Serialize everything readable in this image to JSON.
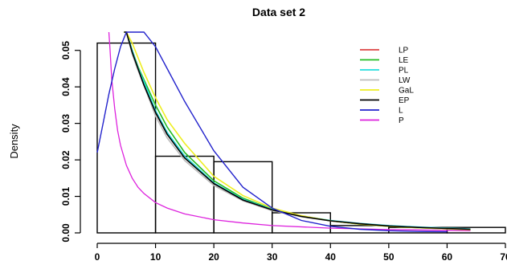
{
  "chart_data": {
    "type": "line",
    "title": "Data set 2",
    "xlabel": "",
    "ylabel": "Density",
    "xlim": [
      0,
      70
    ],
    "ylim": [
      0,
      0.055
    ],
    "x_ticks": [
      "0",
      "10",
      "20",
      "30",
      "40",
      "50",
      "60",
      "70"
    ],
    "y_ticks": [
      "0.00",
      "0.01",
      "0.02",
      "0.03",
      "0.04",
      "0.05"
    ],
    "grid": false,
    "legend_position": "top-right",
    "histogram": [
      {
        "x0": 0,
        "x1": 10,
        "density": 0.052
      },
      {
        "x0": 10,
        "x1": 20,
        "density": 0.021
      },
      {
        "x0": 20,
        "x1": 30,
        "density": 0.0195
      },
      {
        "x0": 30,
        "x1": 40,
        "density": 0.0055
      },
      {
        "x0": 40,
        "x1": 50,
        "density": 0.002
      },
      {
        "x0": 50,
        "x1": 60,
        "density": 0.0015
      },
      {
        "x0": 60,
        "x1": 70,
        "density": 0.0015
      }
    ],
    "x": [
      4.6,
      5,
      6,
      7,
      8,
      10,
      12,
      15,
      20,
      25,
      30,
      35,
      40,
      45,
      50,
      55,
      60,
      64
    ],
    "series": [
      {
        "name": "LP",
        "color": "#dd4444",
        "values": [
          0.0575,
          0.055,
          0.05,
          0.045,
          0.041,
          0.033,
          0.027,
          0.021,
          0.0135,
          0.0092,
          0.0064,
          0.0046,
          0.0033,
          0.0025,
          0.0019,
          0.0015,
          0.0012,
          0.001
        ]
      },
      {
        "name": "LE",
        "color": "#22bb22",
        "values": [
          0.0575,
          0.055,
          0.05,
          0.0455,
          0.042,
          0.035,
          0.029,
          0.022,
          0.0143,
          0.0095,
          0.0065,
          0.0046,
          0.0033,
          0.0024,
          0.0018,
          0.0014,
          0.0011,
          0.0009
        ]
      },
      {
        "name": "PL",
        "color": "#22dddd",
        "values": [
          0.0575,
          0.055,
          0.05,
          0.0452,
          0.0415,
          0.0335,
          0.0275,
          0.021,
          0.0137,
          0.0092,
          0.0064,
          0.0046,
          0.0034,
          0.0026,
          0.002,
          0.0016,
          0.0013,
          0.0011
        ]
      },
      {
        "name": "LW",
        "color": "#bbbbbb",
        "values": [
          0.0575,
          0.055,
          0.049,
          0.0445,
          0.0405,
          0.032,
          0.026,
          0.0198,
          0.013,
          0.0088,
          0.0061,
          0.0044,
          0.0033,
          0.0025,
          0.0019,
          0.0015,
          0.0012,
          0.001
        ]
      },
      {
        "name": "GaL",
        "color": "#eeee22",
        "values": [
          0.0575,
          0.056,
          0.052,
          0.048,
          0.044,
          0.037,
          0.031,
          0.0245,
          0.0155,
          0.0102,
          0.0068,
          0.0047,
          0.0033,
          0.0024,
          0.0018,
          0.0014,
          0.0011,
          0.0009
        ]
      },
      {
        "name": "EP",
        "color": "#000000",
        "values": [
          0.0575,
          0.055,
          0.0495,
          0.045,
          0.0405,
          0.033,
          0.027,
          0.0205,
          0.0135,
          0.009,
          0.0063,
          0.0045,
          0.0033,
          0.0025,
          0.0019,
          0.0015,
          0.0012,
          0.001
        ]
      }
    ],
    "extra_series": [
      {
        "name": "L",
        "color": "#2222cc",
        "x": [
          0,
          1,
          2,
          3,
          4,
          5,
          6,
          7,
          8,
          10,
          12,
          15,
          20,
          25,
          30,
          35,
          40,
          45,
          50,
          55,
          60
        ],
        "values": [
          0.022,
          0.03,
          0.038,
          0.045,
          0.051,
          0.0555,
          0.0575,
          0.0575,
          0.056,
          0.051,
          0.045,
          0.036,
          0.0225,
          0.0125,
          0.0068,
          0.0034,
          0.0018,
          0.001,
          0.0006,
          0.0004,
          0.0003
        ]
      },
      {
        "name": "P",
        "color": "#dd22dd",
        "x": [
          2.0,
          2.2,
          2.5,
          3,
          3.5,
          4,
          5,
          6,
          7,
          8,
          10,
          12,
          15,
          20,
          25,
          30,
          40,
          50,
          60,
          64
        ],
        "values": [
          0.06,
          0.05,
          0.042,
          0.034,
          0.028,
          0.024,
          0.0185,
          0.015,
          0.0125,
          0.0108,
          0.0083,
          0.0068,
          0.0052,
          0.0036,
          0.0027,
          0.002,
          0.0013,
          0.0009,
          0.0007,
          0.0006
        ]
      }
    ]
  }
}
